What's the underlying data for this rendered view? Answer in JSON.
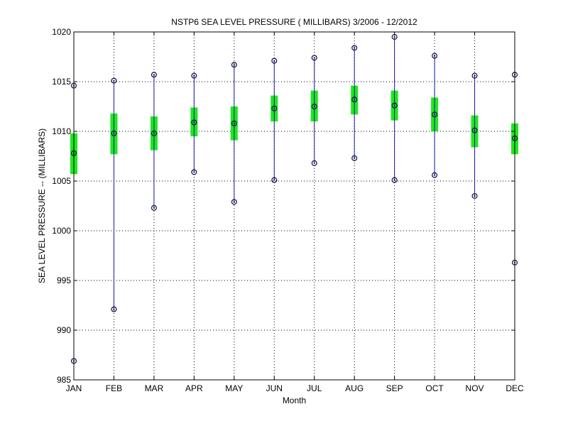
{
  "chart_data": {
    "type": "box",
    "title": "NSTP6  SEA LEVEL PRESSURE ( MILLIBARS) 3/2006 - 12/2012",
    "xlabel": "Month",
    "ylabel": "SEA LEVEL PRESSURE -- (MILLIBARS)",
    "categories": [
      "JAN",
      "FEB",
      "MAR",
      "APR",
      "MAY",
      "JUN",
      "JUL",
      "AUG",
      "SEP",
      "OCT",
      "NOV",
      "DEC"
    ],
    "ylim": [
      985,
      1020
    ],
    "yticks": [
      985,
      990,
      995,
      1000,
      1005,
      1010,
      1015,
      1020
    ],
    "grid": true,
    "series": [
      {
        "name": "max",
        "values": [
          1014.6,
          1015.1,
          1015.7,
          1015.6,
          1016.7,
          1017.1,
          1017.4,
          1018.4,
          1019.5,
          1017.6,
          1015.6,
          1015.7
        ]
      },
      {
        "name": "upper_quartile",
        "values": [
          1009.8,
          1011.8,
          1011.5,
          1012.4,
          1012.5,
          1013.6,
          1014.1,
          1014.6,
          1014.1,
          1013.4,
          1011.6,
          1010.8
        ]
      },
      {
        "name": "mean",
        "values": [
          1007.8,
          1009.8,
          1009.8,
          1010.9,
          1010.8,
          1012.3,
          1012.5,
          1013.2,
          1012.6,
          1011.7,
          1010.1,
          1009.3
        ]
      },
      {
        "name": "lower_quartile",
        "values": [
          1005.7,
          1007.7,
          1008.1,
          1009.5,
          1009.1,
          1011.0,
          1011.0,
          1011.7,
          1011.1,
          1010.0,
          1008.4,
          1007.7
        ]
      },
      {
        "name": "min",
        "values": [
          986.9,
          992.1,
          1002.3,
          1005.9,
          1002.9,
          1005.1,
          1006.8,
          1007.3,
          1005.1,
          1005.6,
          1003.5,
          996.8
        ]
      }
    ],
    "colors": {
      "whisker": "#1a1aa0",
      "box": "#1ee81e",
      "marker": "#1a1a50",
      "grid": "#000000",
      "axis": "#000000"
    }
  }
}
